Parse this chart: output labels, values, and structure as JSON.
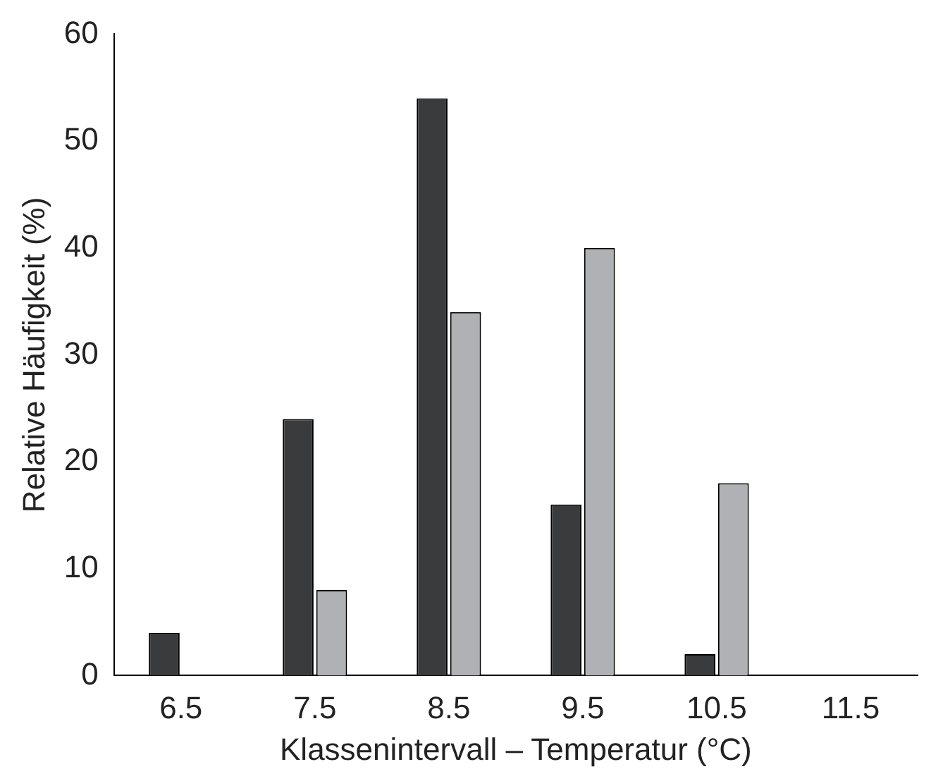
{
  "chart_data": {
    "type": "bar",
    "xlabel": "Klassenintervall – Temperatur (°C)",
    "ylabel": "Relative Häufigkeit (%)",
    "categories": [
      "6.5",
      "7.5",
      "8.5",
      "9.5",
      "10.5",
      "11.5"
    ],
    "series": [
      {
        "color": "#3a3b3d",
        "values": [
          4,
          24,
          54,
          16,
          2,
          0
        ]
      },
      {
        "color": "#b0b1b5",
        "values": [
          0,
          8,
          34,
          40,
          18,
          0
        ]
      }
    ],
    "ylim": [
      0,
      60
    ],
    "yticks": [
      0,
      10,
      20,
      30,
      40,
      50,
      60
    ],
    "grid": false,
    "legend": false
  }
}
